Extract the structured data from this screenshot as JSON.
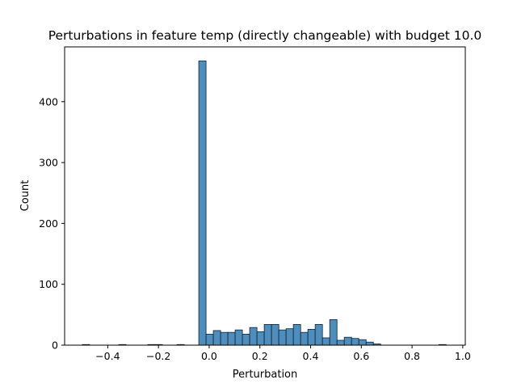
{
  "chart_data": {
    "type": "bar",
    "title": "Perturbations in feature temp (directly changeable) with budget 10.0",
    "xlabel": "Perturbation",
    "ylabel": "Count",
    "xlim": [
      -0.57,
      1.01
    ],
    "ylim": [
      0,
      490
    ],
    "xticks": [
      -0.4,
      -0.2,
      0.0,
      0.2,
      0.4,
      0.6,
      0.8,
      1.0
    ],
    "xtick_labels": [
      "−0.4",
      "−0.2",
      "0.0",
      "0.2",
      "0.4",
      "0.6",
      "0.8",
      "1.0"
    ],
    "yticks": [
      0,
      100,
      200,
      300,
      400
    ],
    "ytick_labels": [
      "0",
      "100",
      "200",
      "300",
      "400"
    ],
    "bar_color": "#4c8fbf",
    "edge_color": "#1f1f1f",
    "grid": false,
    "bins": [
      {
        "x0": -0.5,
        "x1": -0.4713,
        "count": 1
      },
      {
        "x0": -0.3566,
        "x1": -0.3279,
        "count": 1
      },
      {
        "x0": -0.2419,
        "x1": -0.2132,
        "count": 1
      },
      {
        "x0": -0.2132,
        "x1": -0.1845,
        "count": 1
      },
      {
        "x0": -0.1271,
        "x1": -0.0984,
        "count": 1
      },
      {
        "x0": -0.041,
        "x1": -0.0123,
        "count": 467
      },
      {
        "x0": -0.0123,
        "x1": 0.0164,
        "count": 18
      },
      {
        "x0": 0.0164,
        "x1": 0.0451,
        "count": 24
      },
      {
        "x0": 0.0451,
        "x1": 0.0738,
        "count": 21
      },
      {
        "x0": 0.0738,
        "x1": 0.1025,
        "count": 21
      },
      {
        "x0": 0.1025,
        "x1": 0.1311,
        "count": 25
      },
      {
        "x0": 0.1311,
        "x1": 0.1598,
        "count": 18
      },
      {
        "x0": 0.1598,
        "x1": 0.1885,
        "count": 29
      },
      {
        "x0": 0.1885,
        "x1": 0.2172,
        "count": 22
      },
      {
        "x0": 0.2172,
        "x1": 0.2459,
        "count": 34
      },
      {
        "x0": 0.2459,
        "x1": 0.2746,
        "count": 34
      },
      {
        "x0": 0.2746,
        "x1": 0.3033,
        "count": 25
      },
      {
        "x0": 0.3033,
        "x1": 0.332,
        "count": 27
      },
      {
        "x0": 0.332,
        "x1": 0.3607,
        "count": 34
      },
      {
        "x0": 0.3607,
        "x1": 0.3893,
        "count": 21
      },
      {
        "x0": 0.3893,
        "x1": 0.418,
        "count": 26
      },
      {
        "x0": 0.418,
        "x1": 0.4467,
        "count": 34
      },
      {
        "x0": 0.4467,
        "x1": 0.4754,
        "count": 12
      },
      {
        "x0": 0.4754,
        "x1": 0.5041,
        "count": 42
      },
      {
        "x0": 0.5041,
        "x1": 0.5328,
        "count": 8
      },
      {
        "x0": 0.5328,
        "x1": 0.5615,
        "count": 13
      },
      {
        "x0": 0.5615,
        "x1": 0.5902,
        "count": 11
      },
      {
        "x0": 0.5902,
        "x1": 0.6189,
        "count": 9
      },
      {
        "x0": 0.6189,
        "x1": 0.6475,
        "count": 5
      },
      {
        "x0": 0.6475,
        "x1": 0.6762,
        "count": 2
      },
      {
        "x0": 0.9057,
        "x1": 0.9344,
        "count": 1
      }
    ]
  }
}
